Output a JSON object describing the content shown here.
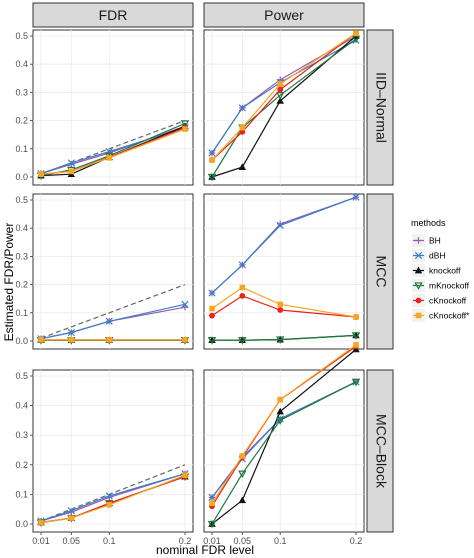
{
  "chart_data": {
    "type": "line",
    "x": [
      0.01,
      0.05,
      0.1,
      0.2
    ],
    "xticklabels": [
      "0.01",
      "0.05",
      "0.1",
      "0.2"
    ],
    "xlabel": "nominal FDR level",
    "ylabel": "Estimated FDR/Power",
    "ylim": [
      0,
      0.5
    ],
    "yticks": [
      0.0,
      0.1,
      0.2,
      0.3,
      0.4,
      0.5
    ],
    "yticklabels": [
      "0.0",
      "0.1",
      "0.2",
      "0.3",
      "0.4",
      "0.5"
    ],
    "columns": [
      "FDR",
      "Power"
    ],
    "rows": [
      "IID–Normal",
      "MCC",
      "MCC–Block"
    ],
    "reference_line": "dashed diagonal y = x on FDR panels",
    "legend": {
      "title": "methods",
      "placement": "right",
      "entries": [
        {
          "name": "BH",
          "color": "#9b59b6",
          "marker": "plus"
        },
        {
          "name": "dBH",
          "color": "#3a7fc4",
          "marker": "cross"
        },
        {
          "name": "knockoff",
          "color": "#111111",
          "marker": "triangle"
        },
        {
          "name": "mKnockoff",
          "color": "#1e7a3e",
          "marker": "triangle-down"
        },
        {
          "name": "cKnockoff",
          "color": "#e8231a",
          "marker": "circle"
        },
        {
          "name": "cKnockoff*",
          "color": "#f5a623",
          "marker": "square"
        }
      ]
    },
    "panels": [
      {
        "row": 0,
        "col": 0,
        "series": [
          {
            "name": "BH",
            "values": [
              0.012,
              0.045,
              0.085,
              0.18
            ]
          },
          {
            "name": "dBH",
            "values": [
              0.012,
              0.05,
              0.09,
              0.175
            ]
          },
          {
            "name": "knockoff",
            "values": [
              0.005,
              0.01,
              0.07,
              0.18
            ]
          },
          {
            "name": "mKnockoff",
            "values": [
              0.005,
              0.025,
              0.075,
              0.19
            ]
          },
          {
            "name": "cKnockoff",
            "values": [
              0.01,
              0.02,
              0.07,
              0.175
            ]
          },
          {
            "name": "cKnockoff*",
            "values": [
              0.01,
              0.02,
              0.068,
              0.17
            ]
          }
        ]
      },
      {
        "row": 0,
        "col": 1,
        "series": [
          {
            "name": "BH",
            "values": [
              0.085,
              0.245,
              0.345,
              0.5
            ]
          },
          {
            "name": "dBH",
            "values": [
              0.085,
              0.245,
              0.335,
              0.485
            ]
          },
          {
            "name": "knockoff",
            "values": [
              0.0,
              0.035,
              0.27,
              0.5
            ]
          },
          {
            "name": "mKnockoff",
            "values": [
              0.0,
              0.175,
              0.29,
              0.49
            ]
          },
          {
            "name": "cKnockoff",
            "values": [
              0.06,
              0.16,
              0.31,
              0.51
            ]
          },
          {
            "name": "cKnockoff*",
            "values": [
              0.06,
              0.175,
              0.33,
              0.51
            ]
          }
        ]
      },
      {
        "row": 1,
        "col": 0,
        "series": [
          {
            "name": "BH",
            "values": [
              0.008,
              0.03,
              0.07,
              0.12
            ]
          },
          {
            "name": "dBH",
            "values": [
              0.008,
              0.03,
              0.07,
              0.13
            ]
          },
          {
            "name": "knockoff",
            "values": [
              0.003,
              0.003,
              0.003,
              0.003
            ]
          },
          {
            "name": "mKnockoff",
            "values": [
              0.003,
              0.003,
              0.003,
              0.003
            ]
          },
          {
            "name": "cKnockoff",
            "values": [
              0.004,
              0.004,
              0.004,
              0.004
            ]
          },
          {
            "name": "cKnockoff*",
            "values": [
              0.004,
              0.004,
              0.004,
              0.004
            ]
          }
        ]
      },
      {
        "row": 1,
        "col": 1,
        "series": [
          {
            "name": "BH",
            "values": [
              0.17,
              0.27,
              0.415,
              0.51
            ]
          },
          {
            "name": "dBH",
            "values": [
              0.17,
              0.27,
              0.41,
              0.51
            ]
          },
          {
            "name": "knockoff",
            "values": [
              0.003,
              0.003,
              0.005,
              0.02
            ]
          },
          {
            "name": "mKnockoff",
            "values": [
              0.003,
              0.003,
              0.005,
              0.02
            ]
          },
          {
            "name": "cKnockoff",
            "values": [
              0.09,
              0.16,
              0.11,
              0.085
            ]
          },
          {
            "name": "cKnockoff*",
            "values": [
              0.115,
              0.19,
              0.13,
              0.085
            ]
          }
        ]
      },
      {
        "row": 2,
        "col": 0,
        "series": [
          {
            "name": "BH",
            "values": [
              0.01,
              0.04,
              0.09,
              0.17
            ]
          },
          {
            "name": "dBH",
            "values": [
              0.01,
              0.045,
              0.095,
              0.17
            ]
          },
          {
            "name": "knockoff",
            "values": [
              0.005,
              0.02,
              0.07,
              0.16
            ]
          },
          {
            "name": "mKnockoff",
            "values": [
              0.005,
              0.02,
              0.07,
              0.16
            ]
          },
          {
            "name": "cKnockoff",
            "values": [
              0.005,
              0.02,
              0.07,
              0.16
            ]
          },
          {
            "name": "cKnockoff*",
            "values": [
              0.005,
              0.02,
              0.065,
              0.165
            ]
          }
        ]
      },
      {
        "row": 2,
        "col": 1,
        "series": [
          {
            "name": "BH",
            "values": [
              0.09,
              0.225,
              0.355,
              0.48
            ]
          },
          {
            "name": "dBH",
            "values": [
              0.09,
              0.22,
              0.355,
              0.48
            ]
          },
          {
            "name": "knockoff",
            "values": [
              0.0,
              0.08,
              0.38,
              0.59
            ]
          },
          {
            "name": "mKnockoff",
            "values": [
              0.0,
              0.17,
              0.35,
              0.48
            ]
          },
          {
            "name": "cKnockoff",
            "values": [
              0.06,
              0.225,
              0.42,
              0.6
            ]
          },
          {
            "name": "cKnockoff*",
            "values": [
              0.07,
              0.23,
              0.42,
              0.605
            ]
          }
        ]
      }
    ]
  }
}
